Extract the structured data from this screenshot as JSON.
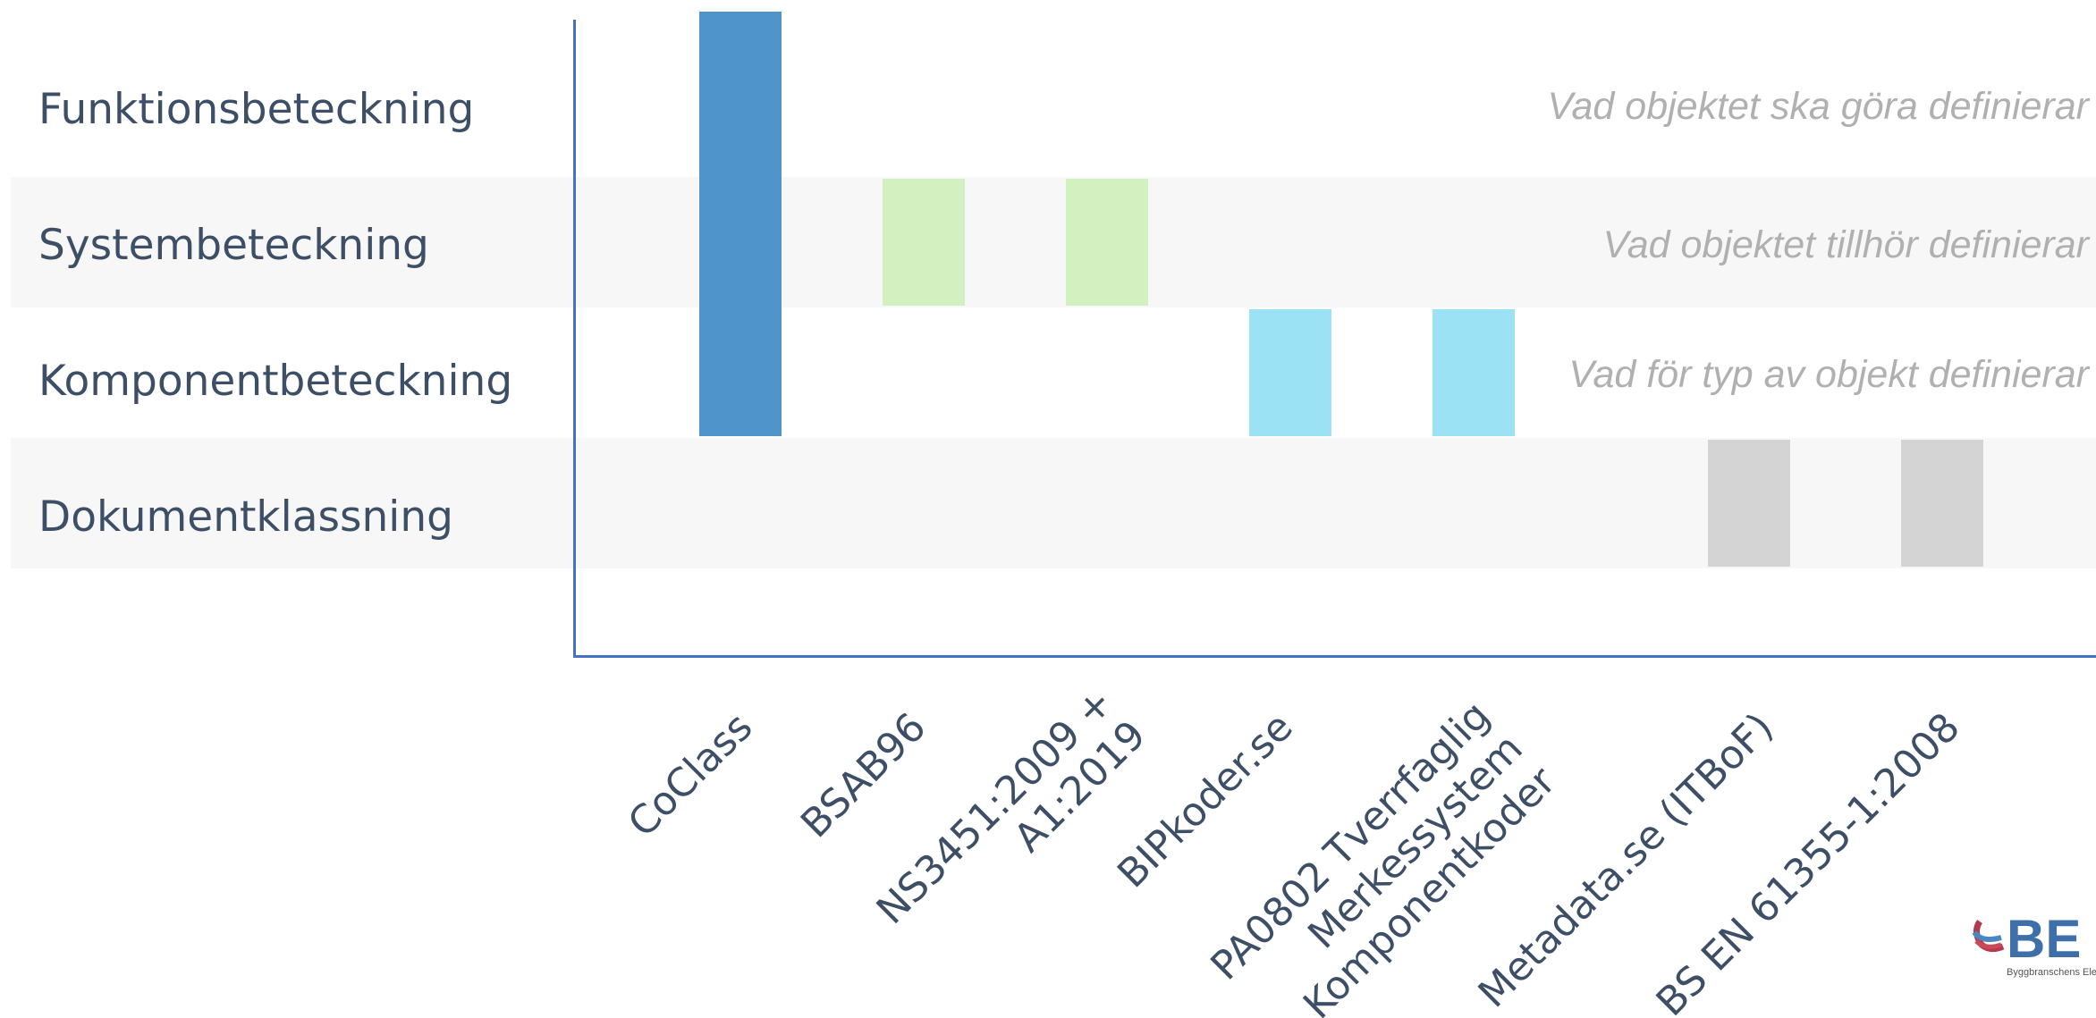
{
  "rows": [
    {
      "label": "Funktionsbeteckning",
      "note": "Vad objektet ska göra definierar",
      "shaded": false
    },
    {
      "label": "Systembeteckning",
      "note": "Vad objektet tillhör definierar",
      "shaded": true
    },
    {
      "label": "Komponentbeteckning",
      "note": "Vad för typ av objekt definierar",
      "shaded": false
    },
    {
      "label": "Dokumentklassning",
      "note": "",
      "shaded": true
    }
  ],
  "chart_data": {
    "type": "bar",
    "title": "",
    "xlabel": "",
    "ylabel": "",
    "categories": [
      [
        "CoClass"
      ],
      [
        "BSAB96"
      ],
      [
        "NS3451:2009 +",
        "A1:2019"
      ],
      [
        "BIPkoder.se"
      ],
      [
        "PA0802 Tverrfaglig",
        "Merkessystem",
        "Komponentkoder"
      ],
      [
        "Metadata.se (ITBoF)"
      ],
      [
        "BS EN 61355-1:2008"
      ]
    ],
    "coverage": [
      {
        "category": 0,
        "rows": [
          0,
          1,
          2
        ],
        "color": "#5094cc"
      },
      {
        "category": 1,
        "rows": [
          1
        ],
        "color": "#d3f0c0"
      },
      {
        "category": 2,
        "rows": [
          1
        ],
        "color": "#d3f0c0"
      },
      {
        "category": 3,
        "rows": [
          2
        ],
        "color": "#9ae2f4"
      },
      {
        "category": 4,
        "rows": [
          2
        ],
        "color": "#9ae2f4"
      },
      {
        "category": 5,
        "rows": [
          3
        ],
        "color": "#d4d4d4"
      },
      {
        "category": 6,
        "rows": [
          3
        ],
        "color": "#d4d4d4"
      }
    ],
    "grid": false,
    "legend": "none"
  },
  "colors": {
    "axis": "#4472c4",
    "label_text": "#3d4f66",
    "note_text": "#b0b0b0",
    "band": "#f7f7f7"
  },
  "logo": {
    "text": "BE",
    "subtext": "Byggbranschens Elektro",
    "icon": "be-logo-icon"
  }
}
